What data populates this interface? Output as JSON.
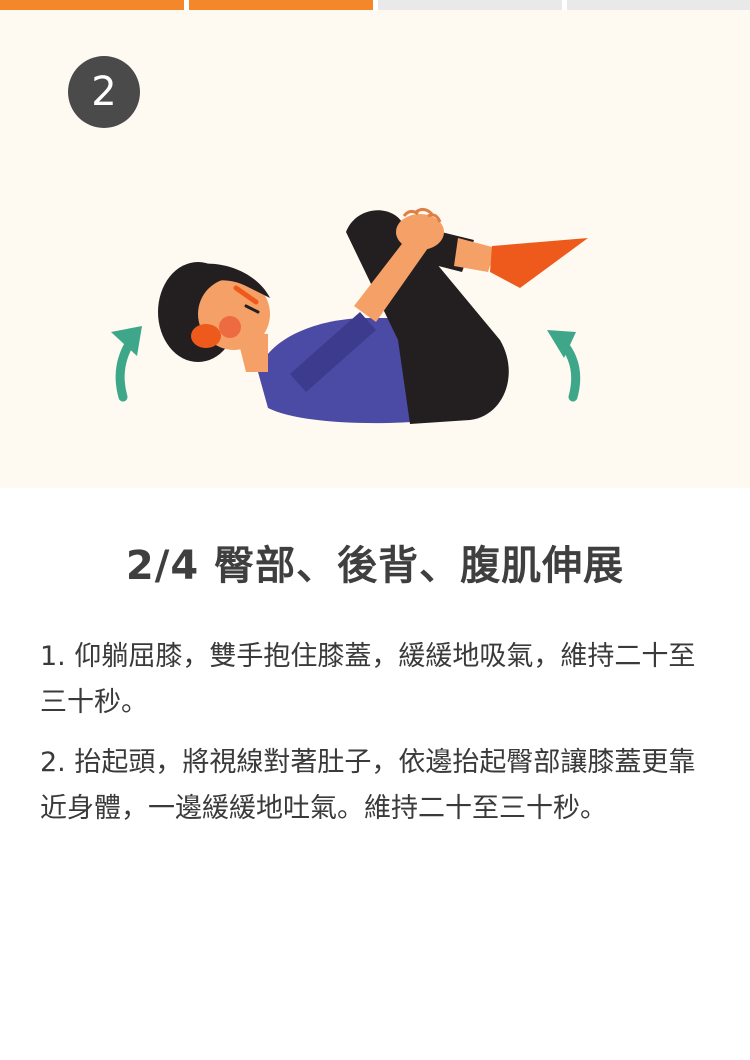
{
  "progress": {
    "total_segments": 4,
    "completed_segments": 2,
    "active_color": "#f5872b",
    "inactive_color": "#e9e9e9"
  },
  "badge": {
    "number": "2"
  },
  "illustration": {
    "icon": "knees-to-chest-stretch-illustration",
    "arrow_color": "#3ea78a"
  },
  "title": "2/4 臀部、後背、腹肌伸展",
  "instructions": [
    "1. 仰躺屈膝，雙手抱住膝蓋，緩緩地吸氣，維持二十至三十秒。",
    "2. 抬起頭，將視線對著肚子，依邊抬起臀部讓膝蓋更靠近身體，一邊緩緩地吐氣。維持二十至三十秒。"
  ]
}
